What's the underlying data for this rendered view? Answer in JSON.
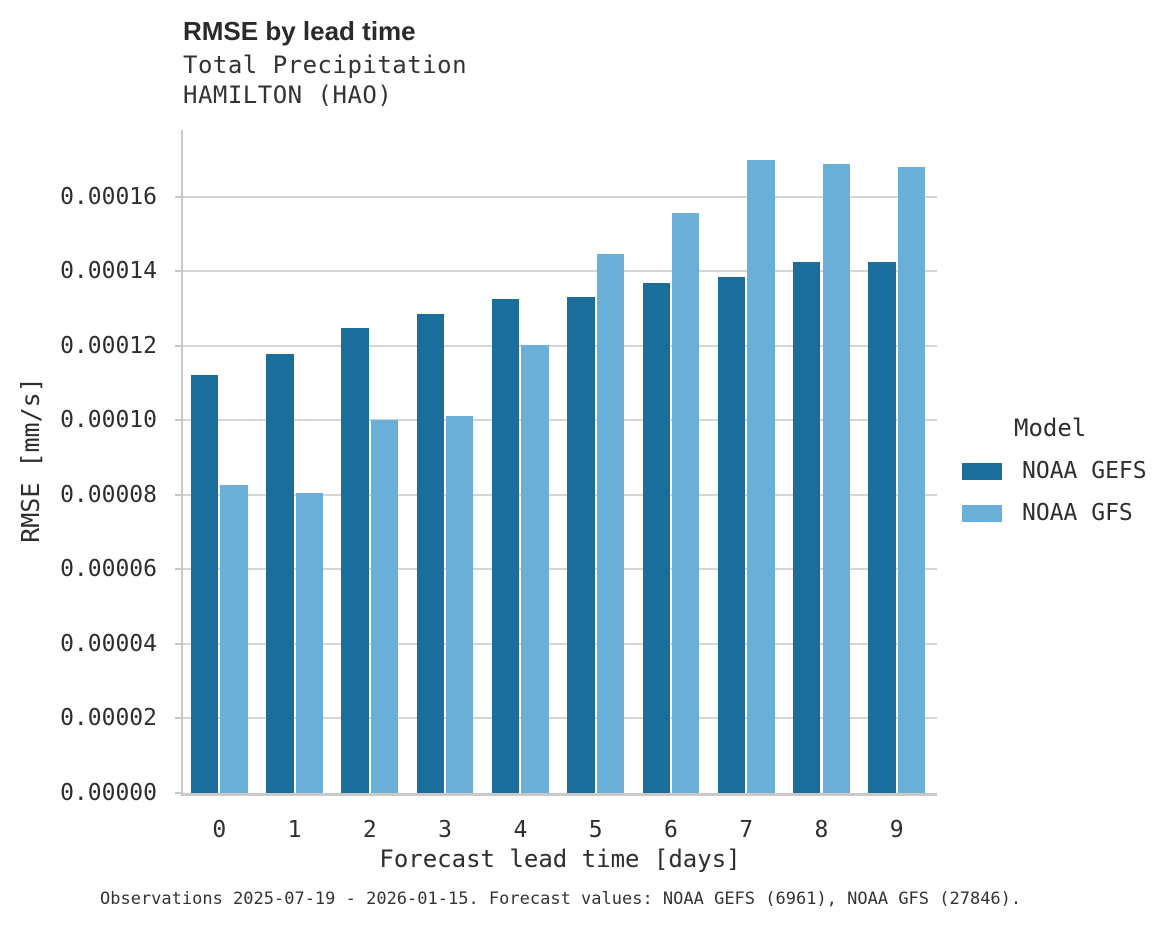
{
  "header": {
    "title": "RMSE by lead time",
    "subtitle1": "Total Precipitation",
    "subtitle2": "HAMILTON (HAO)"
  },
  "footer": {
    "text": "Observations 2025-07-19 - 2026-01-15. Forecast values: NOAA GEFS (6961), NOAA GFS (27846)."
  },
  "colors": {
    "gefs_dark_blue": "#1B6E9C",
    "gfs_light_blue": "#69AFD7",
    "gridline": "#D5D5D5",
    "axis_spine": "#C9C9C9",
    "title_text": "#2A2A2A",
    "body_text": "#333333"
  },
  "chart_data": {
    "type": "bar",
    "title": "RMSE by lead time",
    "subtitle": [
      "Total Precipitation",
      "HAMILTON (HAO)"
    ],
    "xlabel": "Forecast lead time [days]",
    "ylabel": "RMSE [mm/s]",
    "categories": [
      "0",
      "1",
      "2",
      "3",
      "4",
      "5",
      "6",
      "7",
      "8",
      "9"
    ],
    "series": [
      {
        "name": "NOAA GEFS",
        "color": "#1B6E9C",
        "values": [
          0.0001122,
          0.0001178,
          0.0001247,
          0.0001286,
          0.0001324,
          0.000133,
          0.0001368,
          0.0001384,
          0.0001424,
          0.0001424
        ]
      },
      {
        "name": "NOAA GFS",
        "color": "#69AFD7",
        "values": [
          8.25e-05,
          8.05e-05,
          0.0001,
          0.000101,
          0.0001202,
          0.0001446,
          0.0001556,
          0.0001697,
          0.0001688,
          0.0001678
        ]
      }
    ],
    "ylim": [
      0,
      0.00017784
    ],
    "yticks": [
      0,
      2e-05,
      4e-05,
      6e-05,
      8e-05,
      0.0001,
      0.00012,
      0.00014,
      0.00016
    ],
    "ytick_labels": [
      "0.00000",
      "0.00002",
      "0.00004",
      "0.00006",
      "0.00008",
      "0.00010",
      "0.00012",
      "0.00014",
      "0.00016"
    ],
    "grid": "horizontal",
    "legend": {
      "title": "Model",
      "position": "right"
    }
  }
}
